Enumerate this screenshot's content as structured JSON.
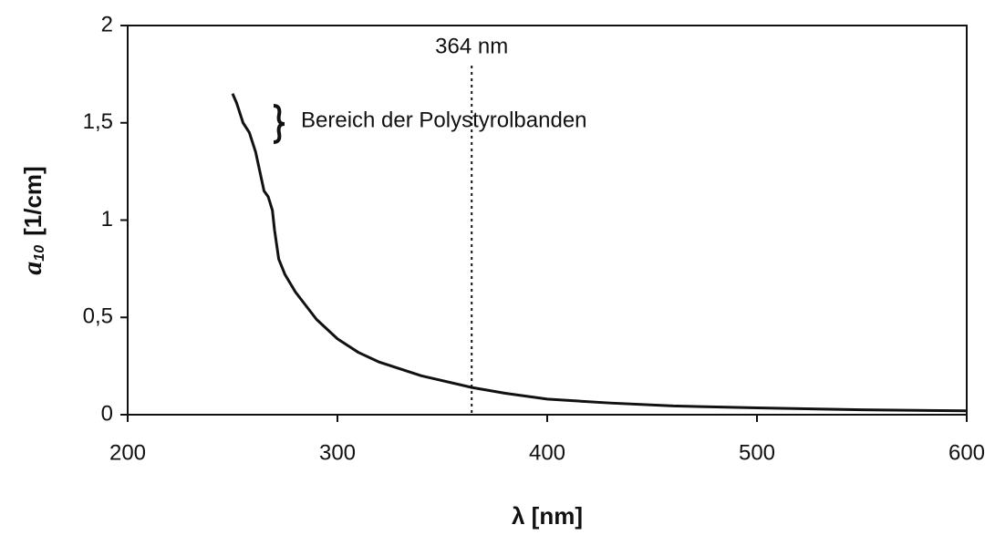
{
  "chart_data": {
    "type": "line",
    "x_label": "λ [nm]",
    "y_label": {
      "symbol": "a",
      "subscript": "10",
      "unit": "[1/cm]"
    },
    "x": [
      250,
      252,
      255,
      258,
      261,
      263,
      265,
      267,
      269,
      270,
      272,
      275,
      280,
      290,
      300,
      310,
      320,
      340,
      364,
      380,
      400,
      430,
      460,
      500,
      550,
      600
    ],
    "series": [
      {
        "color": "#111111",
        "values": [
          1.65,
          1.6,
          1.5,
          1.45,
          1.35,
          1.25,
          1.15,
          1.12,
          1.05,
          0.95,
          0.8,
          0.72,
          0.63,
          0.49,
          0.39,
          0.32,
          0.27,
          0.2,
          0.14,
          0.11,
          0.08,
          0.06,
          0.045,
          0.035,
          0.025,
          0.02
        ]
      }
    ],
    "xlim": [
      200,
      600
    ],
    "ylim": [
      0,
      2
    ],
    "xticks": [
      200,
      300,
      400,
      500,
      600
    ],
    "yticks": [
      0,
      {
        "value": 0.5,
        "label": "0,5"
      },
      1,
      {
        "value": 1.5,
        "label": "1,5"
      },
      2
    ],
    "annotations": [
      {
        "text": "364 nm",
        "x": 364
      },
      {
        "text": "Bereich der Polystyrolbanden"
      }
    ]
  }
}
